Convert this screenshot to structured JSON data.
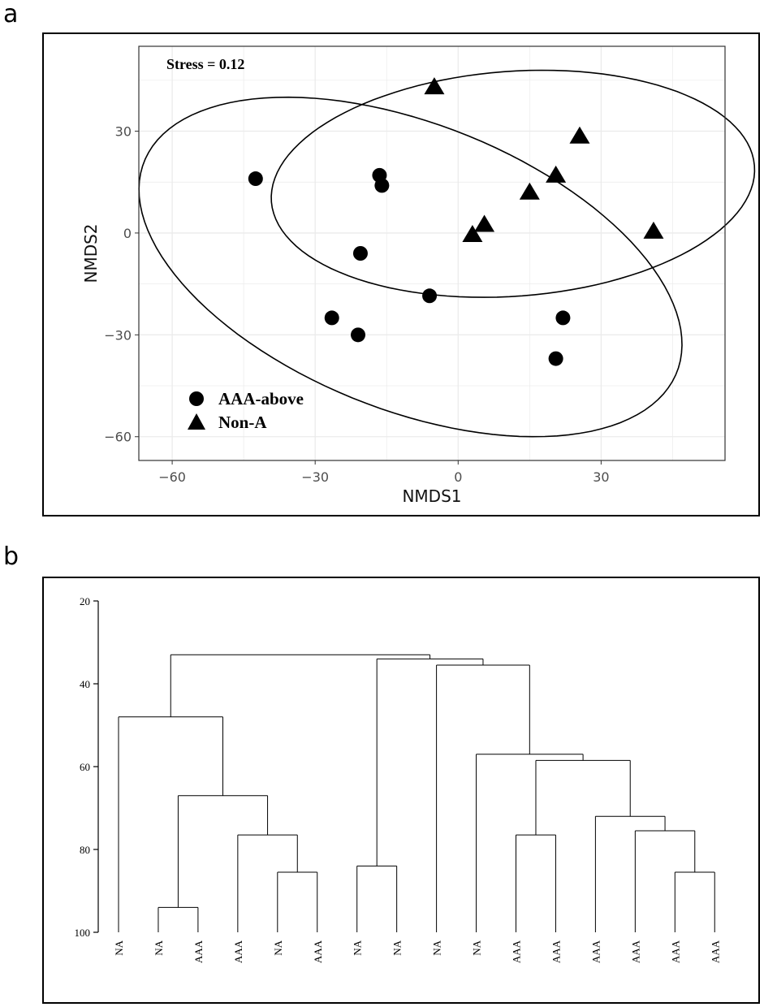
{
  "panels": {
    "a": "a",
    "b": "b"
  },
  "chart_data": [
    {
      "type": "scatter",
      "title": "",
      "xlabel": "NMDS1",
      "ylabel": "NMDS2",
      "xlim": [
        -67,
        56
      ],
      "ylim": [
        -67,
        55
      ],
      "xticks": [
        -60,
        -30,
        0,
        30
      ],
      "yticks": [
        -60,
        -30,
        0,
        30
      ],
      "xtick_labels": [
        "−60",
        "−30",
        "0",
        "30"
      ],
      "ytick_labels": [
        "−60",
        "−30",
        "0",
        "30"
      ],
      "grid": true,
      "annotation": "Stress = 0.12",
      "legend": {
        "position": "bottom-left",
        "entries": [
          {
            "label": "AAA-above",
            "marker": "circle"
          },
          {
            "label": "Non-A",
            "marker": "triangle"
          }
        ]
      },
      "series": [
        {
          "name": "AAA-above",
          "marker": "circle",
          "points": [
            [
              -42.5,
              16
            ],
            [
              -16.5,
              17
            ],
            [
              -16,
              14
            ],
            [
              -20.5,
              -6
            ],
            [
              -6,
              -18.5
            ],
            [
              -26.5,
              -25
            ],
            [
              -21,
              -30
            ],
            [
              22,
              -25
            ],
            [
              20.5,
              -37
            ]
          ]
        },
        {
          "name": "Non-A",
          "marker": "triangle",
          "points": [
            [
              -5,
              43
            ],
            [
              25.5,
              28.5
            ],
            [
              20.5,
              17
            ],
            [
              15,
              12
            ],
            [
              5.5,
              2.5
            ],
            [
              3,
              -0.5
            ],
            [
              41,
              0.5
            ]
          ]
        }
      ],
      "ellipses": [
        {
          "group": "AAA-above",
          "cx": -10,
          "cy": -10,
          "rx": 65,
          "ry": 39,
          "angle_deg": -37
        },
        {
          "group": "Non-A",
          "cx": 11.5,
          "cy": 14.5,
          "rx": 51,
          "ry": 33,
          "angle_deg": 8
        }
      ]
    },
    {
      "type": "dendrogram",
      "ylim": [
        20,
        100
      ],
      "yticks": [
        20,
        40,
        60,
        80,
        100
      ],
      "ytick_labels": [
        "20",
        "40",
        "60",
        "80",
        "100"
      ],
      "leaves": [
        "NA",
        "NA",
        "AAA",
        "AAA",
        "NA",
        "AAA",
        "NA",
        "NA",
        "NA",
        "NA",
        "AAA",
        "AAA",
        "AAA",
        "AAA",
        "AAA",
        "AAA"
      ],
      "merges": [
        {
          "a": "L1",
          "b": "L2",
          "height": 94
        },
        {
          "a": "L4",
          "b": "L5",
          "height": 85.5
        },
        {
          "a": "L3",
          "b": "N1",
          "height": 76.5
        },
        {
          "a": "N0",
          "b": "N2",
          "height": 67
        },
        {
          "a": "L0",
          "b": "N3",
          "height": 48
        },
        {
          "a": "L6",
          "b": "L7",
          "height": 84
        },
        {
          "a": "L14",
          "b": "L15",
          "height": 85.5
        },
        {
          "a": "L13",
          "b": "N6",
          "height": 75.5
        },
        {
          "a": "L12",
          "b": "N7",
          "height": 72
        },
        {
          "a": "L10",
          "b": "L11",
          "height": 76.5
        },
        {
          "a": "N9",
          "b": "N8",
          "height": 58.5
        },
        {
          "a": "L9",
          "b": "N10",
          "height": 57
        },
        {
          "a": "L8",
          "b": "N11",
          "height": 35.5
        },
        {
          "a": "N5",
          "b": "N12",
          "height": 34
        },
        {
          "a": "N4",
          "b": "N13",
          "height": 33
        }
      ]
    }
  ]
}
